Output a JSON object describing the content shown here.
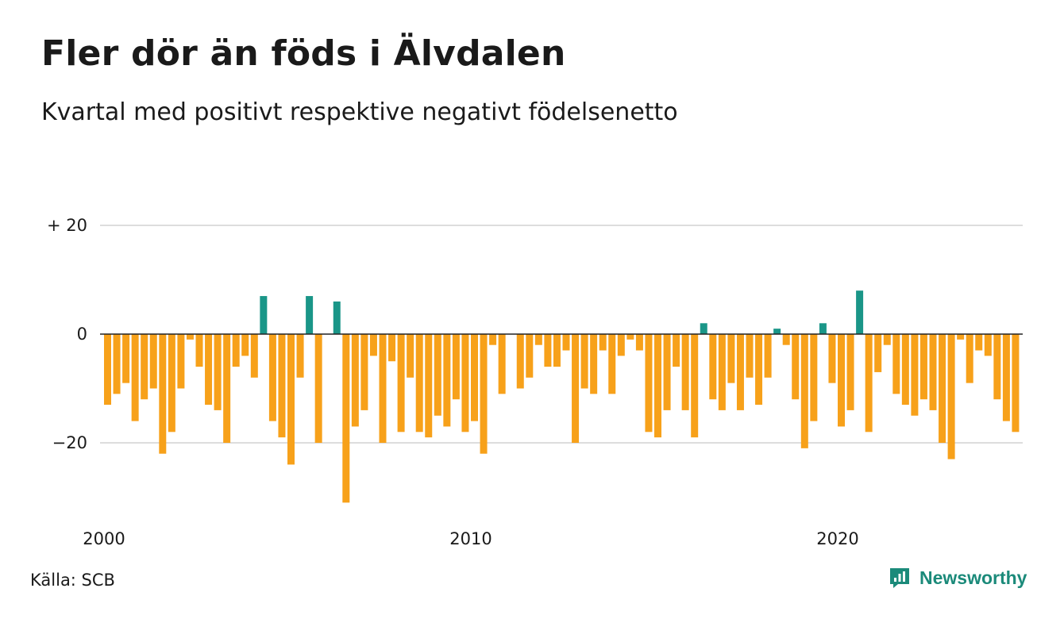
{
  "header": {
    "title": "Fler dör än föds i Älvdalen",
    "subtitle": "Kvartal med positivt respektive negativt födelsenetto"
  },
  "footer": {
    "source": "Källa: SCB",
    "brand": "Newsworthy"
  },
  "colors": {
    "positive": "#1a9688",
    "negative": "#f7a11a",
    "grid": "#dddddd",
    "zero_line": "#222222"
  },
  "chart_data": {
    "type": "bar",
    "title": "Fler dör än föds i Älvdalen",
    "subtitle": "Kvartal med positivt respektive negativt födelsenetto",
    "xlabel": "",
    "ylabel": "",
    "ylim": [
      -32,
      20
    ],
    "y_ticks": [
      {
        "value": 20,
        "label": "+ 20"
      },
      {
        "value": 0,
        "label": "0"
      },
      {
        "value": -20,
        "label": "−20"
      }
    ],
    "x_ticks": [
      {
        "value": 2000,
        "label": "2000"
      },
      {
        "value": 2010,
        "label": "2010"
      },
      {
        "value": 2020,
        "label": "2020"
      }
    ],
    "grid": true,
    "start": "2000-Q1",
    "values": [
      -13,
      -11,
      -9,
      -16,
      -12,
      -10,
      -22,
      -18,
      -10,
      -1,
      -6,
      -13,
      -14,
      -20,
      -6,
      -4,
      -8,
      7,
      -16,
      -19,
      -24,
      -8,
      7,
      -20,
      0,
      6,
      -31,
      -17,
      -14,
      -4,
      -20,
      -5,
      -18,
      -8,
      -18,
      -19,
      -15,
      -17,
      -12,
      -18,
      -16,
      -22,
      -2,
      -11,
      0,
      -10,
      -8,
      -2,
      -6,
      -6,
      -3,
      -20,
      -10,
      -11,
      -3,
      -11,
      -4,
      -1,
      -3,
      -18,
      -19,
      -14,
      -6,
      -14,
      -19,
      2,
      -12,
      -14,
      -9,
      -14,
      -8,
      -13,
      -8,
      1,
      -2,
      -12,
      -21,
      -16,
      2,
      -9,
      -17,
      -14,
      8,
      -18,
      -7,
      -2,
      -11,
      -13,
      -15,
      -12,
      -14,
      -20,
      -23,
      -1,
      -9,
      -3,
      -4,
      -12,
      -16,
      -18
    ]
  }
}
